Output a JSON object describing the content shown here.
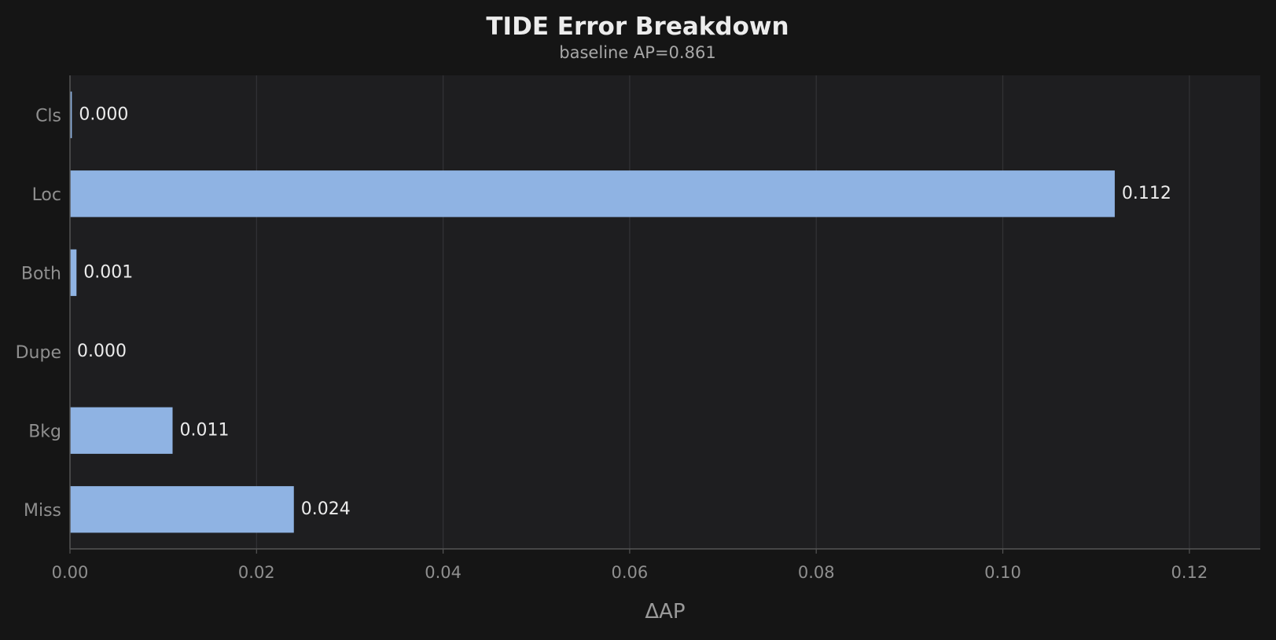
{
  "chart_data": {
    "type": "bar",
    "orientation": "horizontal",
    "title": "TIDE Error Breakdown",
    "subtitle": "baseline AP=0.861",
    "xlabel": "ΔAP",
    "ylabel": "",
    "categories": [
      "Cls",
      "Loc",
      "Both",
      "Dupe",
      "Bkg",
      "Miss"
    ],
    "values": [
      0.0002,
      0.112,
      0.0007,
      0.0,
      0.011,
      0.024
    ],
    "value_labels": [
      "0.000",
      "0.112",
      "0.001",
      "0.000",
      "0.011",
      "0.024"
    ],
    "xlim": [
      0,
      0.1276
    ],
    "xticks": [
      0.0,
      0.02,
      0.04,
      0.06,
      0.08,
      0.1,
      0.12
    ],
    "xtick_labels": [
      "0.00",
      "0.02",
      "0.04",
      "0.06",
      "0.08",
      "0.10",
      "0.12"
    ],
    "grid": "vertical",
    "legend": "none",
    "colors": {
      "background": "#151515",
      "plot_background": "#1e1e20",
      "bar": "#8fb3e3",
      "grid": "#333336",
      "axis": "#555555"
    }
  }
}
